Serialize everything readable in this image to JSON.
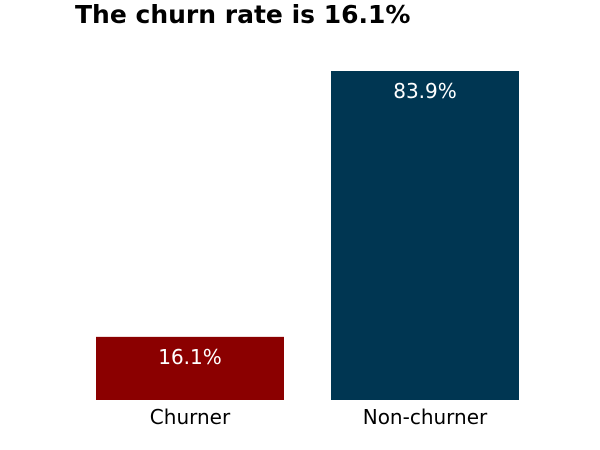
{
  "chart_data": {
    "type": "bar",
    "title": "The churn rate is 16.1%",
    "xlabel": "",
    "ylabel": "",
    "categories": [
      "Churner",
      "Non-churner"
    ],
    "values": [
      16.1,
      83.9
    ],
    "data_labels": [
      "16.1%",
      "83.9%"
    ],
    "colors": [
      "#8b0000",
      "#003652"
    ],
    "ylim": [
      0,
      83.9
    ],
    "grid": false,
    "axes_visible": false,
    "legend": "none"
  }
}
